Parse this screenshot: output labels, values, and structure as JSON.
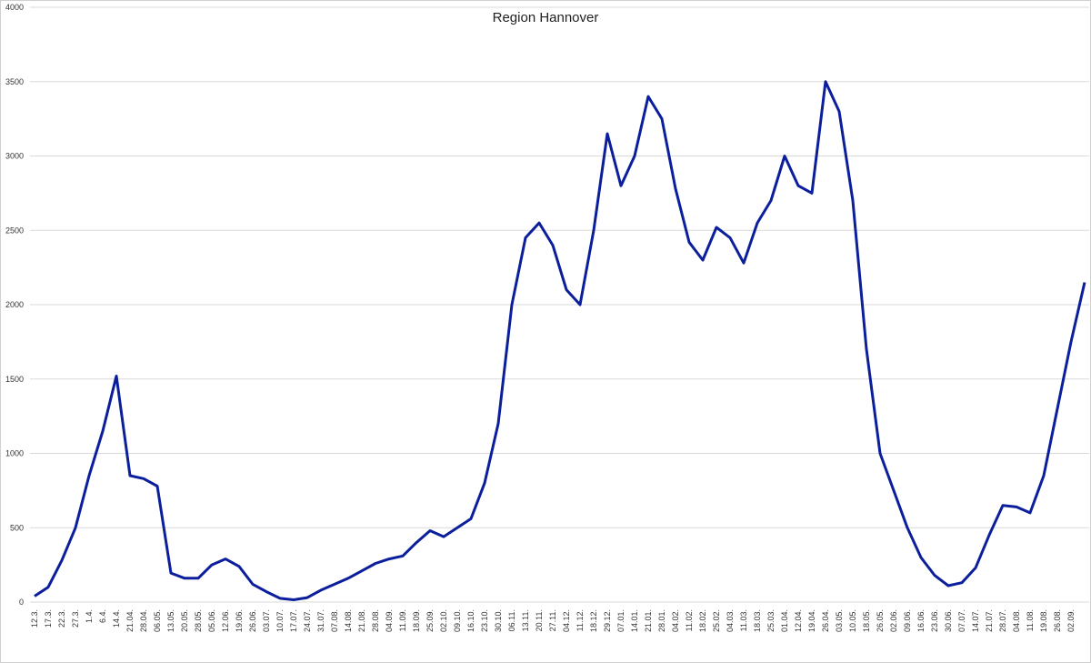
{
  "chart_data": {
    "type": "line",
    "title": "Region Hannover",
    "categories": [
      "12.3.",
      "17.3.",
      "22.3.",
      "27.3.",
      "1.4.",
      "6.4.",
      "14.4.",
      "21.04.",
      "28.04.",
      "06.05.",
      "13.05.",
      "20.05.",
      "28.05.",
      "05.06.",
      "12.06.",
      "19.06.",
      "26.06.",
      "03.07.",
      "10.07.",
      "17.07.",
      "24.07.",
      "31.07.",
      "07.08.",
      "14.08.",
      "21.08.",
      "28.08.",
      "04.09.",
      "11.09.",
      "18.09.",
      "25.09.",
      "02.10.",
      "09.10.",
      "16.10.",
      "23.10.",
      "30.10.",
      "06.11.",
      "13.11.",
      "20.11.",
      "27.11.",
      "04.12.",
      "11.12.",
      "18.12.",
      "29.12.",
      "07.01.",
      "14.01.",
      "21.01.",
      "28.01.",
      "04.02.",
      "11.02.",
      "18.02.",
      "25.02.",
      "04.03.",
      "11.03.",
      "18.03.",
      "25.03.",
      "01.04.",
      "12.04.",
      "19.04.",
      "26.04.",
      "03.05.",
      "10.05.",
      "18.05.",
      "26.05.",
      "02.06.",
      "09.06.",
      "16.06.",
      "23.06.",
      "30.06.",
      "07.07.",
      "14.07.",
      "21.07.",
      "28.07.",
      "04.08.",
      "11.08.",
      "19.08.",
      "26.08.",
      "02.09.",
      null
    ],
    "series": [
      {
        "name": "Region Hannover",
        "color": "#0b1f9c",
        "values": [
          40,
          100,
          280,
          500,
          850,
          1150,
          1520,
          850,
          830,
          780,
          195,
          160,
          160,
          250,
          290,
          240,
          120,
          70,
          25,
          15,
          30,
          80,
          120,
          160,
          210,
          260,
          290,
          310,
          400,
          480,
          440,
          500,
          560,
          800,
          1200,
          2000,
          2450,
          2550,
          2400,
          2100,
          2000,
          2500,
          3150,
          2800,
          3000,
          3400,
          3250,
          2780,
          2420,
          2300,
          2520,
          2450,
          2280,
          2550,
          2700,
          3000,
          2800,
          2750,
          3500,
          3300,
          2700,
          1700,
          1000,
          750,
          500,
          300,
          180,
          110,
          130,
          230,
          450,
          650,
          640,
          600,
          850,
          1300,
          1750,
          2150
        ]
      }
    ],
    "ylim": [
      0,
      4000
    ],
    "yticks": [
      0,
      500,
      1000,
      1500,
      2000,
      2500,
      3000,
      3500,
      4000
    ],
    "grid": true
  }
}
